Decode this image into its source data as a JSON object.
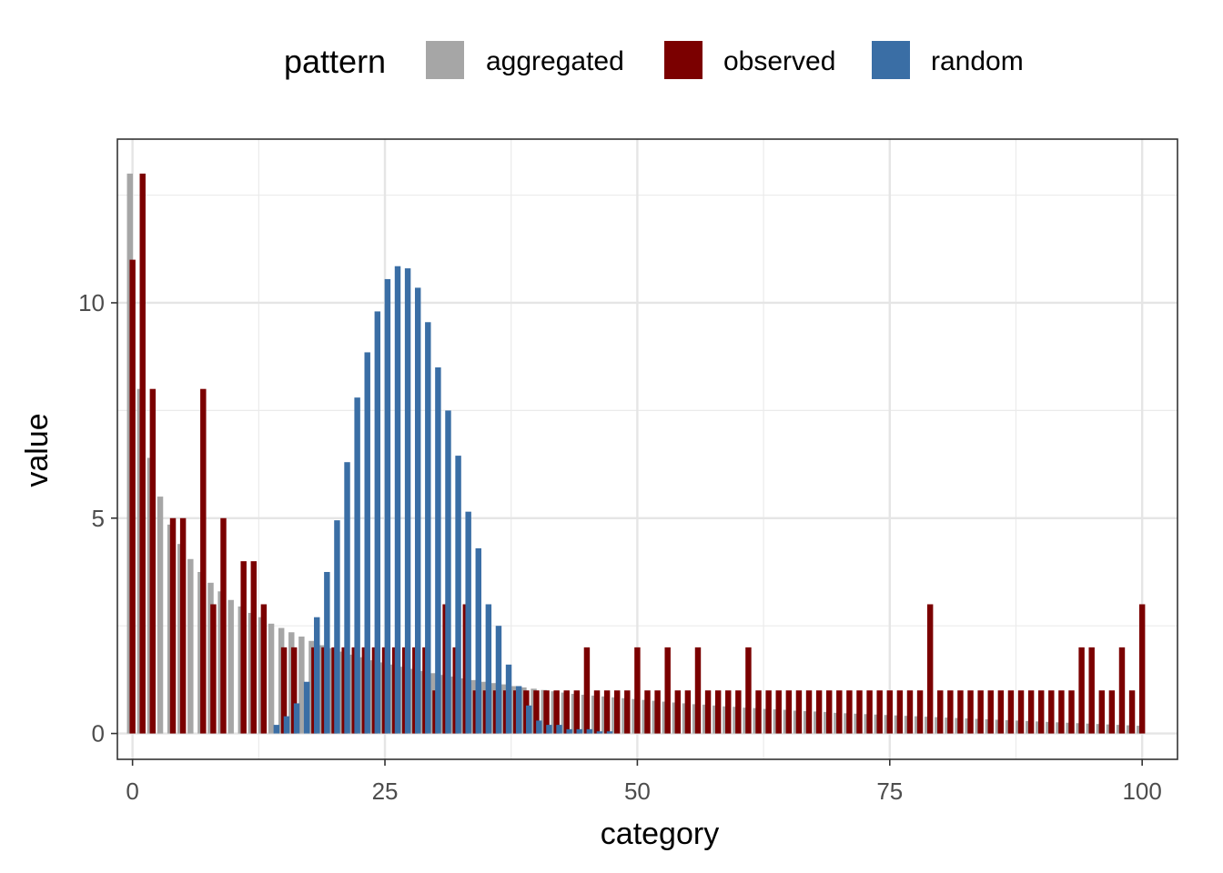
{
  "chart_data": {
    "type": "bar",
    "xlabel": "category",
    "ylabel": "value",
    "xlim": [
      -1.5,
      103.5
    ],
    "ylim": [
      -0.6,
      13.8
    ],
    "x_ticks": [
      0,
      25,
      50,
      75,
      100
    ],
    "x_tick_labels": [
      "0",
      "25",
      "50",
      "75",
      "100"
    ],
    "y_ticks": [
      0,
      5,
      10
    ],
    "y_tick_labels": [
      "0",
      "5",
      "10"
    ],
    "grid": true,
    "legend": {
      "title": "pattern",
      "position": "top",
      "entries": [
        {
          "name": "aggregated",
          "color": "#a6a6a6"
        },
        {
          "name": "observed",
          "color": "#7b0000"
        },
        {
          "name": "random",
          "color": "#3a6ea5"
        }
      ]
    },
    "series": [
      {
        "name": "aggregated",
        "color": "#a6a6a6",
        "x_start": 0,
        "values": [
          13.0,
          8.0,
          6.4,
          5.5,
          4.85,
          4.4,
          4.05,
          3.75,
          3.5,
          3.3,
          3.1,
          2.95,
          2.8,
          2.7,
          2.55,
          2.45,
          2.35,
          2.25,
          2.15,
          2.05,
          1.98,
          1.9,
          1.83,
          1.77,
          1.7,
          1.65,
          1.6,
          1.55,
          1.5,
          1.45,
          1.4,
          1.36,
          1.32,
          1.28,
          1.24,
          1.2,
          1.17,
          1.14,
          1.1,
          1.07,
          1.04,
          1.01,
          0.98,
          0.95,
          0.92,
          0.9,
          0.88,
          0.86,
          0.84,
          0.82,
          0.8,
          0.78,
          0.76,
          0.74,
          0.72,
          0.7,
          0.68,
          0.67,
          0.65,
          0.63,
          0.62,
          0.6,
          0.59,
          0.57,
          0.56,
          0.55,
          0.53,
          0.52,
          0.51,
          0.5,
          0.48,
          0.47,
          0.46,
          0.45,
          0.44,
          0.43,
          0.42,
          0.41,
          0.4,
          0.39,
          0.38,
          0.37,
          0.36,
          0.35,
          0.34,
          0.33,
          0.32,
          0.31,
          0.3,
          0.29,
          0.28,
          0.27,
          0.26,
          0.25,
          0.24,
          0.23,
          0.22,
          0.21,
          0.2,
          0.19,
          0.18
        ]
      },
      {
        "name": "observed",
        "color": "#7b0000",
        "x_start": 0,
        "values": [
          11,
          13,
          8,
          0,
          5,
          5,
          0,
          8,
          3,
          5,
          0,
          4,
          4,
          3,
          0,
          2,
          2,
          0,
          2,
          2,
          2,
          2,
          2,
          2,
          2,
          2,
          2,
          2,
          2,
          2,
          1,
          3,
          2,
          3,
          1,
          1,
          1,
          1,
          1,
          1,
          1,
          1,
          1,
          1,
          1,
          2,
          1,
          1,
          1,
          1,
          2,
          1,
          1,
          2,
          1,
          1,
          2,
          1,
          1,
          1,
          1,
          2,
          1,
          1,
          1,
          1,
          1,
          1,
          1,
          1,
          1,
          1,
          1,
          1,
          1,
          1,
          1,
          1,
          1,
          3,
          1,
          1,
          1,
          1,
          1,
          1,
          1,
          1,
          1,
          1,
          1,
          1,
          1,
          1,
          2,
          2,
          1,
          1,
          2,
          1,
          3
        ]
      },
      {
        "name": "random",
        "color": "#3a6ea5",
        "x_start": 14,
        "values": [
          0.2,
          0.4,
          0.7,
          1.2,
          2.7,
          3.75,
          4.95,
          6.3,
          7.8,
          8.85,
          9.8,
          10.55,
          10.85,
          10.8,
          10.35,
          9.55,
          8.5,
          7.5,
          6.45,
          5.15,
          4.3,
          3.0,
          2.5,
          1.6,
          1.1,
          0.65,
          0.3,
          0.2,
          0.2,
          0.1,
          0.1,
          0.1,
          0.05,
          0.05
        ]
      }
    ]
  }
}
